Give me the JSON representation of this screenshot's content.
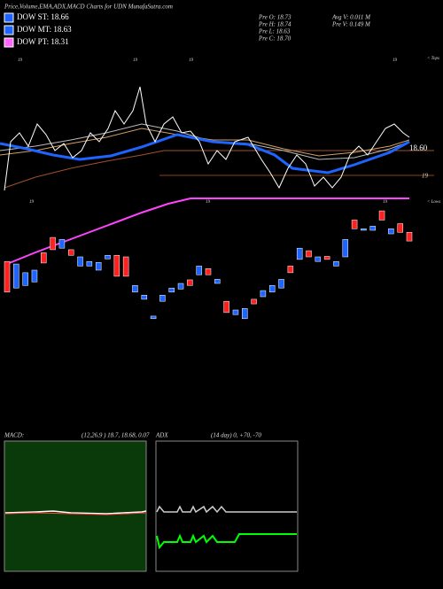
{
  "header": {
    "title": "Price,Volume,EMA,ADX,MACD Charts for UDN  MunafaSutra.com"
  },
  "legend": [
    {
      "label": "DOW ST: 18.66",
      "color": "#1e64ff"
    },
    {
      "label": "DOW MT: 18.63",
      "color": "#1e64ff"
    },
    {
      "label": "DOW PT: 18.31",
      "color": "#ff66ff"
    }
  ],
  "stats": [
    "Pre  O: 18.73",
    "Pre  H: 18.74",
    "Pre  L: 18.63",
    "Pre  C: 18.70",
    "Avg V: 0.011 M",
    "Pre  V: 0.149 M"
  ],
  "price_labels": {
    "ema": "18.60",
    "level": "19",
    "tops": "< Tops",
    "lows": "< Lows",
    "top_marks": [
      "19",
      "19",
      "19",
      "19"
    ],
    "low_marks": [
      "19",
      "19",
      "19"
    ]
  },
  "chart_data": {
    "type": "candlestick",
    "ylim": [
      16.8,
      19.4
    ],
    "up_color": "#1e64ff",
    "down_color": "#ff2020",
    "open": [
      18.27,
      17.75,
      17.8,
      17.87,
      18.44,
      18.74,
      18.53,
      18.5,
      18.18,
      18.18,
      18.1,
      18.32,
      18.39,
      18.36,
      17.67,
      17.53,
      17.15,
      17.49,
      17.67,
      17.73,
      17.91,
      18.01,
      18.13,
      17.84,
      17.49,
      17.23,
      17.15,
      17.53,
      17.58,
      17.67,
      17.75,
      18.18,
      18.31,
      18.48,
      18.27,
      18.37,
      18.18,
      18.36,
      19.08,
      18.88,
      18.88,
      19.26,
      18.81,
      19.01,
      18.84
    ],
    "close": [
      17.67,
      18.22,
      18.05,
      18.1,
      18.24,
      18.5,
      18.7,
      18.39,
      18.36,
      18.27,
      18.25,
      18.39,
      17.98,
      17.98,
      17.8,
      17.61,
      17.2,
      17.61,
      17.75,
      17.84,
      17.8,
      18.18,
      18.01,
      17.92,
      17.27,
      17.32,
      17.35,
      17.44,
      17.7,
      17.8,
      17.92,
      18.05,
      18.53,
      18.36,
      18.36,
      18.31,
      18.27,
      18.7,
      18.91,
      18.91,
      18.96,
      19.08,
      18.91,
      18.84,
      18.67
    ]
  },
  "macd": {
    "label": "MACD:",
    "params": "(12,26,9 ) 18.7, 18.68, 0.07"
  },
  "adx": {
    "label": "ADX",
    "params": "(14 day) 0, +70, -70"
  }
}
